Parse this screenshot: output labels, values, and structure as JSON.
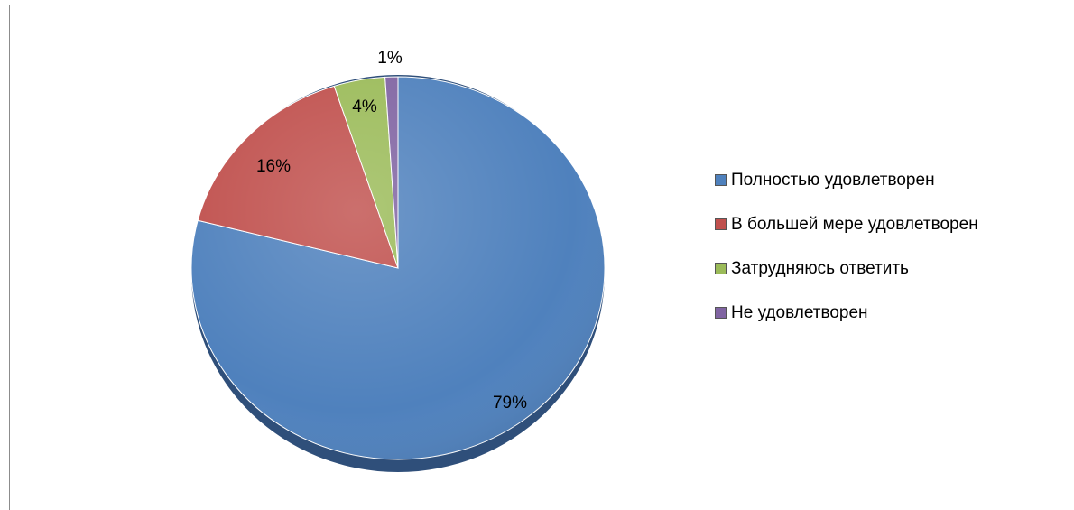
{
  "chart_data": {
    "type": "pie",
    "slices": [
      {
        "label": "Полностью удовлетворен",
        "value": 79,
        "display": "79%",
        "color": "#4f81bd"
      },
      {
        "label": "В большей мере удовлетворен",
        "value": 16,
        "display": "16%",
        "color": "#c0504d"
      },
      {
        "label": "Затрудняюсь ответить",
        "value": 4,
        "display": "4%",
        "color": "#9bbb59"
      },
      {
        "label": "Не удовлетворен",
        "value": 1,
        "display": "1%",
        "color": "#8064a2"
      }
    ],
    "legend_position": "right"
  }
}
